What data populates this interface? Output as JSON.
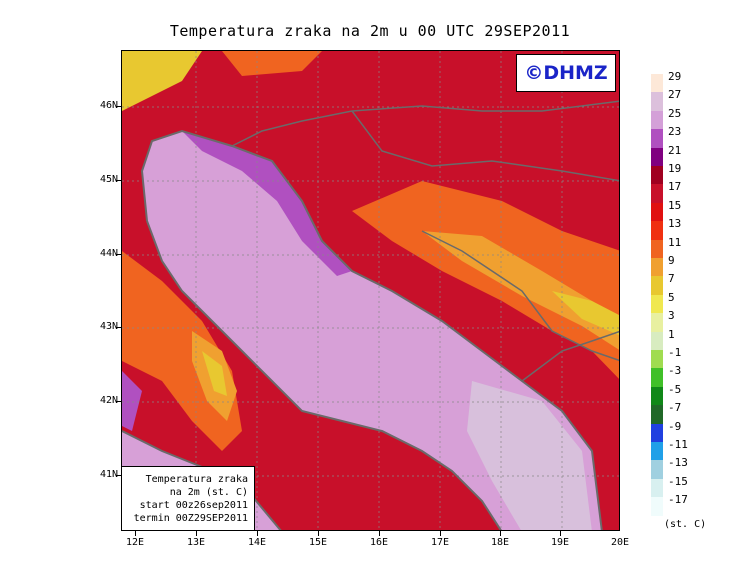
{
  "title": "Temperatura zraka na 2m u 00 UTC 29SEP2011",
  "logo_text": "©DHMZ",
  "info_box": {
    "line1": "Temperatura zraka",
    "line2": "na 2m (st. C)",
    "line3": "start 00z26sep2011",
    "line4": "termin 00Z29SEP2011"
  },
  "lat_labels": [
    "46N",
    "45N",
    "44N",
    "43N",
    "42N",
    "41N"
  ],
  "lon_labels": [
    "12E",
    "13E",
    "14E",
    "15E",
    "16E",
    "17E",
    "18E",
    "19E",
    "20E"
  ],
  "legend": {
    "unit": "(st. C)",
    "labels": [
      "29",
      "27",
      "25",
      "23",
      "21",
      "19",
      "17",
      "15",
      "13",
      "11",
      "9",
      "7",
      "5",
      "3",
      "1",
      "-1",
      "-3",
      "-5",
      "-7",
      "-9",
      "-11",
      "-13",
      "-15",
      "-17"
    ],
    "colors": [
      "#fde8d8",
      "#dcc0dc",
      "#d4a0d8",
      "#b050c0",
      "#800080",
      "#a00020",
      "#c8102a",
      "#e01010",
      "#f03010",
      "#f06420",
      "#f0a030",
      "#e8c830",
      "#f0e850",
      "#e8f0a0",
      "#d8ecc0",
      "#a0dc50",
      "#40c028",
      "#108818",
      "#206828",
      "#2040e0",
      "#20a0e8",
      "#a0d0e0",
      "#d8f0f0",
      "#f0fcfc"
    ]
  },
  "colors": {
    "sea": "#d7a0d7",
    "sea_deep": "#d8c0dc",
    "coast_purple": "#b050c0",
    "land_warm": "#c8102a",
    "land_mid": "#e01010",
    "land_cool": "#f06420",
    "land_cold": "#f0a030",
    "land_coldest": "#e8c830",
    "logo": "#1a24c8"
  }
}
